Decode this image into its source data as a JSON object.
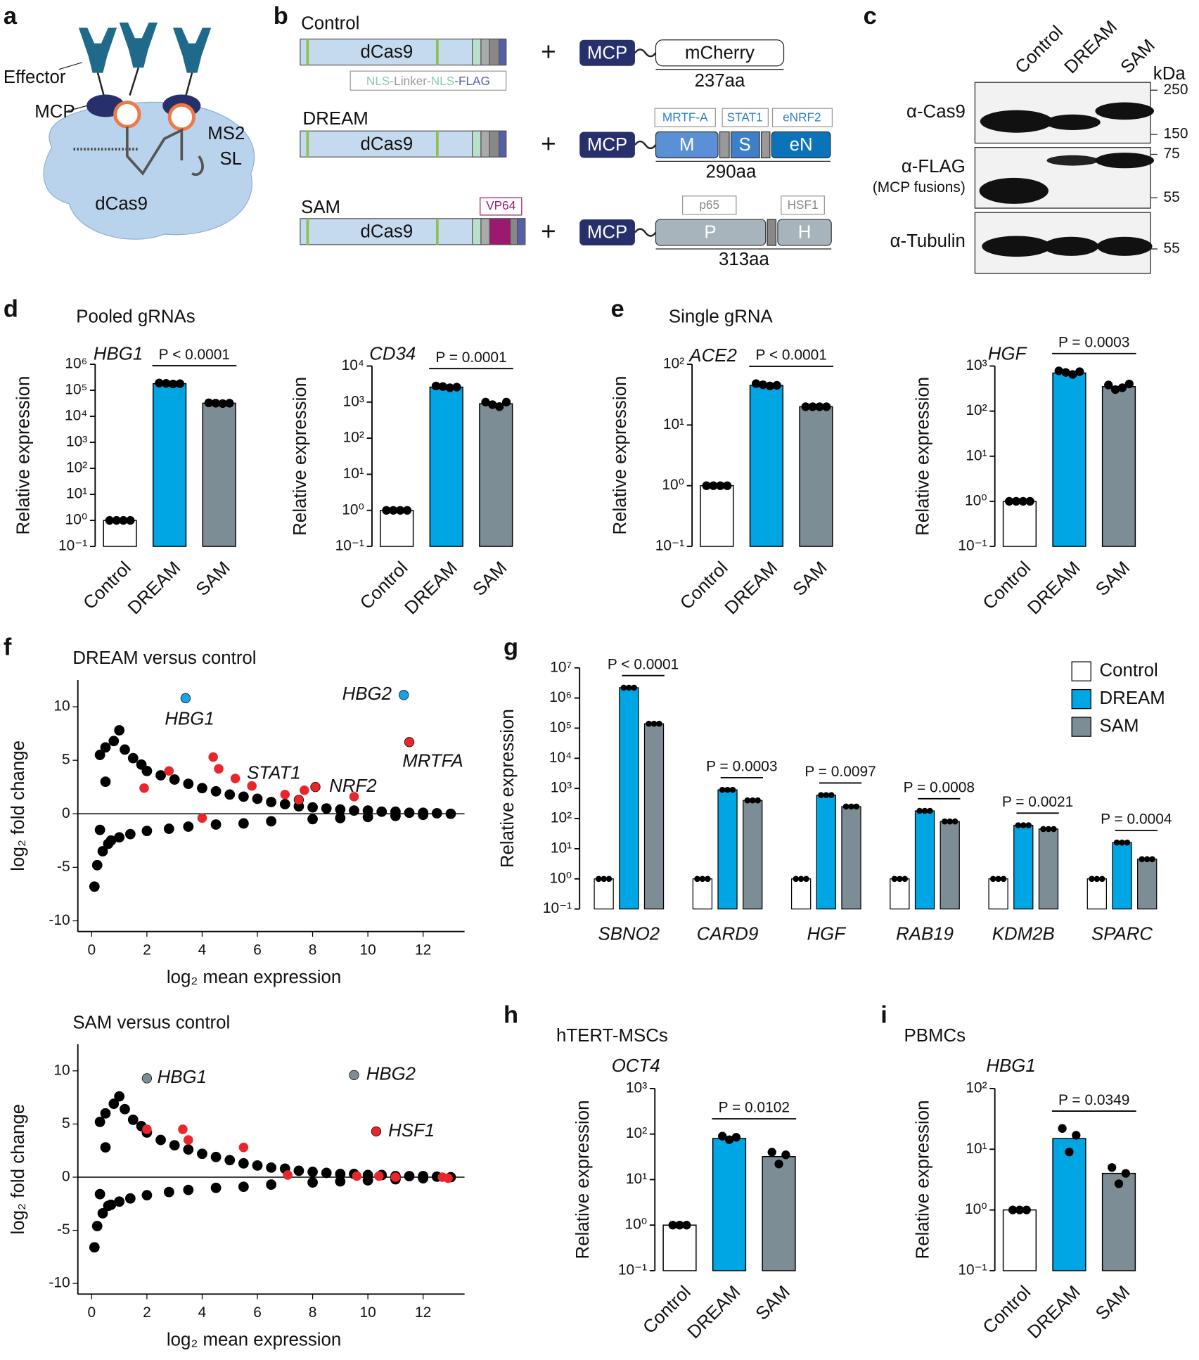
{
  "panel_letters": [
    "a",
    "b",
    "c",
    "d",
    "e",
    "f",
    "g",
    "h",
    "i"
  ],
  "diagrams": {
    "a": {
      "effector": "Effector",
      "mcp": "MCP",
      "ms2": "MS2",
      "sl": "SL",
      "dcas9": "dCas9"
    },
    "b": {
      "plus": "+",
      "nls_legend": [
        "NLS",
        "-Linker-",
        "NLS",
        "-FLAG"
      ],
      "rows": [
        {
          "name": "Control",
          "dcas9": "dCas9",
          "mcp": "MCP",
          "fusion": "mCherry",
          "length": "237aa"
        },
        {
          "name": "DREAM",
          "dcas9": "dCas9",
          "mcp": "MCP",
          "domains": [
            "M",
            "S",
            "eN"
          ],
          "domain_names": [
            "MRTF-A",
            "STAT1",
            "eNRF2"
          ],
          "length": "290aa"
        },
        {
          "name": "SAM",
          "dcas9": "dCas9",
          "mcp": "MCP",
          "vp64": "VP64",
          "domains": [
            "P",
            "H"
          ],
          "domain_names": [
            "p65",
            "HSF1"
          ],
          "length": "313aa"
        }
      ]
    },
    "c": {
      "lanes": [
        "Control",
        "DREAM",
        "SAM"
      ],
      "unit": "kDa",
      "markers": [
        250,
        150,
        75,
        55,
        55
      ],
      "blots": [
        "α-Cas9",
        "α-FLAG",
        "α-Tubulin"
      ],
      "note": "(MCP fusions)"
    }
  },
  "chart_data": [
    {
      "type": "bar",
      "group_title": "Pooled gRNAs",
      "gene": "HBG1",
      "ylabel": "Relative expression",
      "log_scale": true,
      "categories": [
        "Control",
        "DREAM",
        "SAM"
      ],
      "colors": [
        "#ffffff",
        "#00a6e3",
        "#7d8d95"
      ],
      "values": [
        1,
        180000,
        32000
      ],
      "replicates": [
        [
          1,
          1,
          1,
          1
        ],
        [
          190000,
          185000,
          175000,
          180000
        ],
        [
          33000,
          32000,
          31000,
          32000
        ]
      ],
      "annotation": "P < 0.0001",
      "ylim": [
        0.1,
        1000000
      ],
      "yticks": [
        {
          "value": 0.1,
          "label": "10⁻¹"
        },
        {
          "value": 1,
          "label": "10⁰"
        },
        {
          "value": 10,
          "label": "10¹"
        },
        {
          "value": 100,
          "label": "10²"
        },
        {
          "value": 1000,
          "label": "10³"
        },
        {
          "value": 10000,
          "label": "10⁴"
        },
        {
          "value": 100000,
          "label": "10⁵"
        },
        {
          "value": 1000000,
          "label": "10⁶"
        }
      ]
    },
    {
      "type": "bar",
      "gene": "CD34",
      "ylabel": "Relative expression",
      "log_scale": true,
      "categories": [
        "Control",
        "DREAM",
        "SAM"
      ],
      "colors": [
        "#ffffff",
        "#00a6e3",
        "#7d8d95"
      ],
      "values": [
        1,
        2600,
        900
      ],
      "replicates": [
        [
          1,
          1,
          1,
          1
        ],
        [
          2800,
          2700,
          2500,
          2600
        ],
        [
          1000,
          850,
          750,
          1000
        ]
      ],
      "annotation": "P = 0.0001",
      "ylim": [
        0.1,
        10000
      ],
      "yticks": [
        {
          "value": 0.1,
          "label": "10⁻¹"
        },
        {
          "value": 1,
          "label": "10⁰"
        },
        {
          "value": 10,
          "label": "10¹"
        },
        {
          "value": 100,
          "label": "10²"
        },
        {
          "value": 1000,
          "label": "10³"
        },
        {
          "value": 10000,
          "label": "10⁴"
        }
      ]
    },
    {
      "type": "bar",
      "group_title": "Single gRNA",
      "gene": "ACE2",
      "ylabel": "Relative expression",
      "log_scale": true,
      "categories": [
        "Control",
        "DREAM",
        "SAM"
      ],
      "colors": [
        "#ffffff",
        "#00a6e3",
        "#7d8d95"
      ],
      "values": [
        1,
        45,
        20
      ],
      "replicates": [
        [
          1,
          1,
          1,
          1
        ],
        [
          48,
          46,
          44,
          45
        ],
        [
          20,
          20,
          20,
          20
        ]
      ],
      "annotation": "P < 0.0001",
      "ylim": [
        0.1,
        100
      ],
      "yticks": [
        {
          "value": 0.1,
          "label": "10⁻¹"
        },
        {
          "value": 1,
          "label": "10⁰"
        },
        {
          "value": 10,
          "label": "10¹"
        },
        {
          "value": 100,
          "label": "10²"
        }
      ]
    },
    {
      "type": "bar",
      "gene": "HGF",
      "ylabel": "Relative expression",
      "log_scale": true,
      "categories": [
        "Control",
        "DREAM",
        "SAM"
      ],
      "colors": [
        "#ffffff",
        "#00a6e3",
        "#7d8d95"
      ],
      "values": [
        1,
        700,
        350
      ],
      "replicates": [
        [
          1,
          1,
          1,
          1
        ],
        [
          780,
          720,
          650,
          750
        ],
        [
          380,
          300,
          330,
          400
        ]
      ],
      "annotation": "P = 0.0003",
      "ylim": [
        0.1,
        1000
      ],
      "yticks": [
        {
          "value": 0.1,
          "label": "10⁻¹"
        },
        {
          "value": 1,
          "label": "10⁰"
        },
        {
          "value": 10,
          "label": "10¹"
        },
        {
          "value": 100,
          "label": "10²"
        },
        {
          "value": 1000,
          "label": "10³"
        }
      ]
    },
    {
      "type": "scatter",
      "title": "DREAM versus control",
      "xlabel": "log₂ mean expression",
      "ylabel": "log₂ fold change",
      "zero_line": true,
      "xlim": [
        -0.5,
        13.5
      ],
      "ylim": [
        -11,
        12.5
      ],
      "xticks": [
        0,
        2,
        4,
        6,
        8,
        10,
        12
      ],
      "yticks": [
        -10,
        -5,
        0,
        5,
        10
      ],
      "series": [
        {
          "color": "#000000",
          "x": [
            0.1,
            0.2,
            0.3,
            0.4,
            0.5,
            0.6,
            0.8,
            1.0,
            1.2,
            1.5,
            1.8,
            2.0,
            2.5,
            3.0,
            3.5,
            4.0,
            4.5,
            5.0,
            5.5,
            6.0,
            6.5,
            7.0,
            7.5,
            8.0,
            8.5,
            9.0,
            9.5,
            10,
            10.5,
            11,
            11.5,
            12,
            12.5,
            13,
            0.3,
            0.5,
            0.7,
            1.0,
            1.4,
            2.0,
            2.8,
            3.5,
            4.5,
            5.5,
            6.5,
            8,
            9,
            10,
            11,
            12
          ],
          "y": [
            -6.8,
            -4.8,
            5.5,
            -3.5,
            6.2,
            -2.8,
            6.8,
            7.8,
            6.0,
            5.2,
            4.6,
            4.0,
            3.6,
            3.2,
            2.8,
            2.4,
            2.1,
            1.8,
            1.6,
            1.4,
            1.1,
            0.9,
            0.7,
            0.6,
            0.5,
            0.4,
            0.3,
            0.3,
            0.2,
            0.2,
            0.1,
            0.1,
            0.05,
            0,
            -1.5,
            3,
            -2.5,
            -2.2,
            -1.9,
            -1.6,
            -1.4,
            -1.2,
            -1.0,
            -0.9,
            -0.7,
            -0.5,
            -0.4,
            -0.3,
            -0.2,
            -0.1
          ]
        },
        {
          "color": "#e8262b",
          "x": [
            1.9,
            2.8,
            4.4,
            4.6,
            5.2,
            5.8,
            7.0,
            7.7,
            9.5,
            4.0
          ],
          "y": [
            2.4,
            4.0,
            5.3,
            4.2,
            3.3,
            2.6,
            1.8,
            2.2,
            1.6,
            -0.4
          ]
        },
        {
          "color": "#1aa3e0",
          "x": [
            3.4,
            11.3
          ],
          "y": [
            10.8,
            11.1
          ],
          "labels": [
            "HBG1",
            "HBG2"
          ]
        },
        {
          "color": "#e8262b",
          "x": [
            11.5,
            7.5,
            8.1
          ],
          "y": [
            6.7,
            1.3,
            2.5
          ],
          "labels": [
            "MRTFA",
            "STAT1",
            "NRF2"
          ]
        }
      ]
    },
    {
      "type": "scatter",
      "title": "SAM versus control",
      "xlabel": "log₂ mean expression",
      "ylabel": "log₂ fold change",
      "zero_line": true,
      "xlim": [
        -0.5,
        13.5
      ],
      "ylim": [
        -11,
        12.5
      ],
      "xticks": [
        0,
        2,
        4,
        6,
        8,
        10,
        12
      ],
      "yticks": [
        -10,
        -5,
        0,
        5,
        10
      ],
      "series": [
        {
          "color": "#000000",
          "x": [
            0.1,
            0.2,
            0.3,
            0.4,
            0.5,
            0.6,
            0.8,
            1.0,
            1.2,
            1.5,
            1.8,
            2.0,
            2.5,
            3.0,
            3.5,
            4.0,
            4.5,
            5.0,
            5.5,
            6.0,
            6.5,
            7.0,
            7.5,
            8.0,
            8.5,
            9.0,
            9.5,
            10,
            10.5,
            11,
            11.5,
            12,
            12.5,
            13,
            0.3,
            0.5,
            0.7,
            1.0,
            1.4,
            2.0,
            2.8,
            3.5,
            4.5,
            5.5,
            6.5,
            8,
            9,
            10,
            11,
            12
          ],
          "y": [
            -6.6,
            -4.6,
            5.2,
            -3.4,
            6.0,
            -2.7,
            6.9,
            7.6,
            6.4,
            5.4,
            4.8,
            4.2,
            3.5,
            3.0,
            2.6,
            2.2,
            1.9,
            1.6,
            1.3,
            1.1,
            0.9,
            0.8,
            0.6,
            0.5,
            0.4,
            0.3,
            0.3,
            0.2,
            0.2,
            0.1,
            0.1,
            0.1,
            0.05,
            0,
            -1.6,
            2.8,
            -2.6,
            -2.3,
            -2.0,
            -1.7,
            -1.4,
            -1.2,
            -1.0,
            -0.9,
            -0.7,
            -0.5,
            -0.4,
            -0.3,
            -0.2,
            -0.1
          ]
        },
        {
          "color": "#e8262b",
          "x": [
            2.0,
            3.3,
            3.5,
            5.5,
            7.1,
            9.6,
            10.4,
            11.0,
            12.9,
            12.7
          ],
          "y": [
            4.5,
            4.5,
            3.5,
            2.8,
            0.2,
            0.1,
            0.1,
            0,
            -0.1,
            0
          ]
        },
        {
          "color": "#7d8d95",
          "x": [
            2.0,
            9.5
          ],
          "y": [
            9.3,
            9.6
          ],
          "labels": [
            "HBG1",
            "HBG2"
          ]
        },
        {
          "color": "#e8262b",
          "x": [
            10.3
          ],
          "y": [
            4.3
          ],
          "labels": [
            "HSF1"
          ]
        }
      ]
    },
    {
      "type": "bar",
      "ylabel": "Relative expression",
      "log_scale": true,
      "legend": "upper right",
      "categories": [
        "SBNO2",
        "CARD9",
        "HGF",
        "RAB19",
        "KDM2B",
        "SPARC"
      ],
      "series": [
        {
          "name": "Control",
          "color": "#ffffff",
          "values": [
            1,
            1,
            1,
            1,
            1,
            1
          ]
        },
        {
          "name": "DREAM",
          "color": "#00a6e3",
          "values": [
            2200000,
            900,
            600,
            180,
            60,
            16
          ]
        },
        {
          "name": "SAM",
          "color": "#7d8d95",
          "values": [
            140000,
            400,
            250,
            80,
            45,
            4.5
          ]
        }
      ],
      "annotations": [
        "P < 0.0001",
        "P = 0.0003",
        "P = 0.0097",
        "P = 0.0008",
        "P = 0.0021",
        "P = 0.0004"
      ],
      "ylim": [
        0.1,
        10000000
      ],
      "yticks": [
        {
          "value": 0.1,
          "label": "10⁻¹"
        },
        {
          "value": 1,
          "label": "10⁰"
        },
        {
          "value": 10,
          "label": "10¹"
        },
        {
          "value": 100,
          "label": "10²"
        },
        {
          "value": 1000,
          "label": "10³"
        },
        {
          "value": 10000,
          "label": "10⁴"
        },
        {
          "value": 100000,
          "label": "10⁵"
        },
        {
          "value": 1000000,
          "label": "10⁶"
        },
        {
          "value": 10000000,
          "label": "10⁷"
        }
      ]
    },
    {
      "type": "bar",
      "group_title": "hTERT-MSCs",
      "gene": "OCT4",
      "ylabel": "Relative expression",
      "log_scale": true,
      "categories": [
        "Control",
        "DREAM",
        "SAM"
      ],
      "colors": [
        "#ffffff",
        "#00a6e3",
        "#7d8d95"
      ],
      "values": [
        1,
        80,
        32
      ],
      "replicates": [
        [
          1,
          1,
          1
        ],
        [
          90,
          75,
          85
        ],
        [
          40,
          22,
          35
        ]
      ],
      "annotation": "P = 0.0102",
      "ylim": [
        0.1,
        1000
      ],
      "yticks": [
        {
          "value": 0.1,
          "label": "10⁻¹"
        },
        {
          "value": 1,
          "label": "10⁰"
        },
        {
          "value": 10,
          "label": "10¹"
        },
        {
          "value": 100,
          "label": "10²"
        },
        {
          "value": 1000,
          "label": "10³"
        }
      ]
    },
    {
      "type": "bar",
      "group_title": "PBMCs",
      "gene": "HBG1",
      "ylabel": "Relative expression",
      "log_scale": true,
      "categories": [
        "Control",
        "DREAM",
        "SAM"
      ],
      "colors": [
        "#ffffff",
        "#00a6e3",
        "#7d8d95"
      ],
      "values": [
        1,
        15,
        4
      ],
      "replicates": [
        [
          1,
          1,
          1
        ],
        [
          22,
          9,
          17
        ],
        [
          5,
          2.7,
          4
        ]
      ],
      "annotation": "P = 0.0349",
      "ylim": [
        0.1,
        100
      ],
      "yticks": [
        {
          "value": 0.1,
          "label": "10⁻¹"
        },
        {
          "value": 1,
          "label": "10⁰"
        },
        {
          "value": 10,
          "label": "10¹"
        },
        {
          "value": 100,
          "label": "10²"
        }
      ]
    }
  ]
}
